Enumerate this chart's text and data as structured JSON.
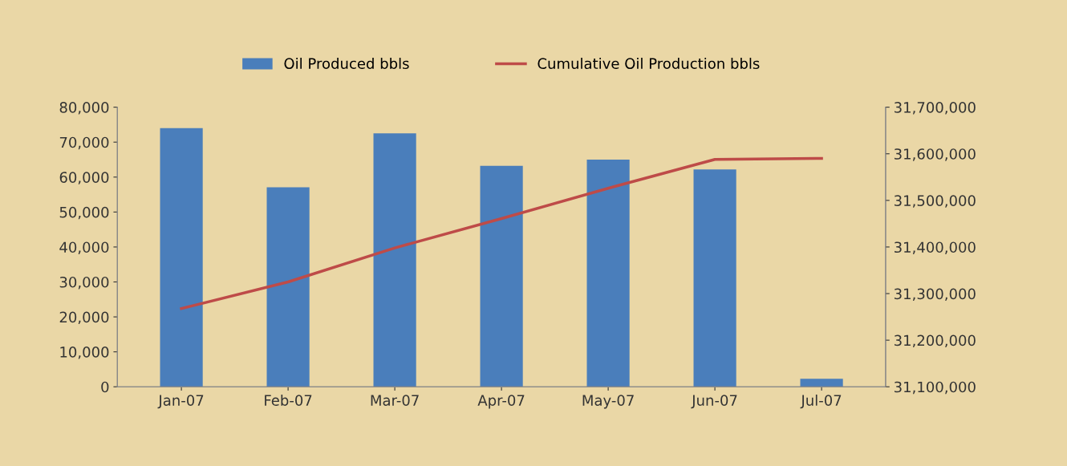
{
  "chart_data": {
    "type": "bar",
    "categories": [
      "Jan-07",
      "Feb-07",
      "Mar-07",
      "Apr-07",
      "May-07",
      "Jun-07",
      "Jul-07"
    ],
    "series": [
      {
        "name": "Oil Produced bbls",
        "color": "#4a7ebb",
        "values": [
          74000,
          57100,
          72500,
          63200,
          65000,
          62200,
          2300
        ]
      },
      {
        "name": "Cumulative Oil Production bbls",
        "type": "line",
        "axis": "y2",
        "color": "#be4b48",
        "values": [
          31268000,
          31325000,
          31398000,
          31461000,
          31526000,
          31588000,
          31590000
        ]
      }
    ],
    "ylim": [
      0,
      80000
    ],
    "yticks": [
      {
        "value": 0,
        "label": "0"
      },
      {
        "value": 10000,
        "label": "10,000"
      },
      {
        "value": 20000,
        "label": "20,000"
      },
      {
        "value": 30000,
        "label": "30,000"
      },
      {
        "value": 40000,
        "label": "40,000"
      },
      {
        "value": 50000,
        "label": "50,000"
      },
      {
        "value": 60000,
        "label": "60,000"
      },
      {
        "value": 70000,
        "label": "70,000"
      },
      {
        "value": 80000,
        "label": "80,000"
      }
    ],
    "y2lim": [
      31100000,
      31700000
    ],
    "y2ticks": [
      {
        "value": 31100000,
        "label": "31,100,000"
      },
      {
        "value": 31200000,
        "label": "31,200,000"
      },
      {
        "value": 31300000,
        "label": "31,300,000"
      },
      {
        "value": 31400000,
        "label": "31,400,000"
      },
      {
        "value": 31500000,
        "label": "31,500,000"
      },
      {
        "value": 31600000,
        "label": "31,600,000"
      },
      {
        "value": 31700000,
        "label": "31,700,000"
      }
    ],
    "legend": "top",
    "grid": false,
    "marker": "none",
    "line_style": "solid"
  }
}
